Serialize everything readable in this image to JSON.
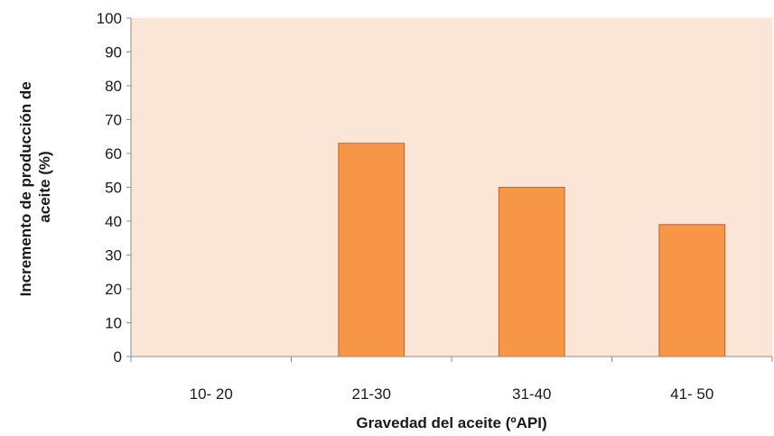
{
  "chart_data": {
    "type": "bar",
    "categories": [
      "10- 20",
      "21-30",
      "31-40",
      "41- 50"
    ],
    "values": [
      0,
      63,
      50,
      39
    ],
    "title": "",
    "xlabel": "Gravedad del aceite (ºAPI)",
    "ylabel_lines": [
      "Incremento  de producción de",
      "aceite (%)"
    ],
    "ylim": [
      0,
      100
    ],
    "yticks": [
      0,
      10,
      20,
      30,
      40,
      50,
      60,
      70,
      80,
      90,
      100
    ],
    "grid": false,
    "legend": "none",
    "colors": {
      "plot_background": "#fbe5d6",
      "bar_fill": "#f79646",
      "bar_stroke": "#c0652a",
      "axis": "#8c8c8c"
    }
  }
}
